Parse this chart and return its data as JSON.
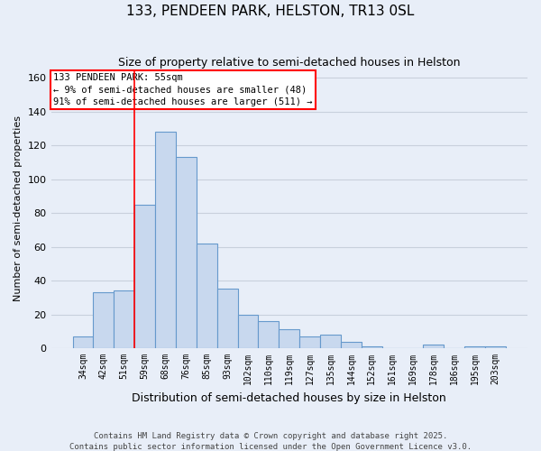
{
  "title": "133, PENDEEN PARK, HELSTON, TR13 0SL",
  "subtitle": "Size of property relative to semi-detached houses in Helston",
  "xlabel": "Distribution of semi-detached houses by size in Helston",
  "ylabel": "Number of semi-detached properties",
  "categories": [
    "34sqm",
    "42sqm",
    "51sqm",
    "59sqm",
    "68sqm",
    "76sqm",
    "85sqm",
    "93sqm",
    "102sqm",
    "110sqm",
    "119sqm",
    "127sqm",
    "135sqm",
    "144sqm",
    "152sqm",
    "161sqm",
    "169sqm",
    "178sqm",
    "186sqm",
    "195sqm",
    "203sqm"
  ],
  "values": [
    7,
    33,
    34,
    85,
    128,
    113,
    62,
    35,
    20,
    16,
    11,
    7,
    8,
    4,
    1,
    0,
    0,
    2,
    0,
    1,
    1
  ],
  "bar_color": "#c8d8ee",
  "bar_edge_color": "#6699cc",
  "vline_color": "red",
  "vline_pos": 2.5,
  "ylim": [
    0,
    165
  ],
  "yticks": [
    0,
    20,
    40,
    60,
    80,
    100,
    120,
    140,
    160
  ],
  "annotation_title": "133 PENDEEN PARK: 55sqm",
  "annotation_line1": "← 9% of semi-detached houses are smaller (48)",
  "annotation_line2": "91% of semi-detached houses are larger (511) →",
  "annotation_box_color": "white",
  "annotation_box_edge": "red",
  "footer1": "Contains HM Land Registry data © Crown copyright and database right 2025.",
  "footer2": "Contains public sector information licensed under the Open Government Licence v3.0.",
  "background_color": "#e8eef8",
  "grid_color": "#c8d0dc",
  "title_fontsize": 11,
  "subtitle_fontsize": 9,
  "ylabel_fontsize": 8,
  "xlabel_fontsize": 9,
  "tick_fontsize": 7,
  "annotation_fontsize": 7.5,
  "footer_fontsize": 6.5
}
